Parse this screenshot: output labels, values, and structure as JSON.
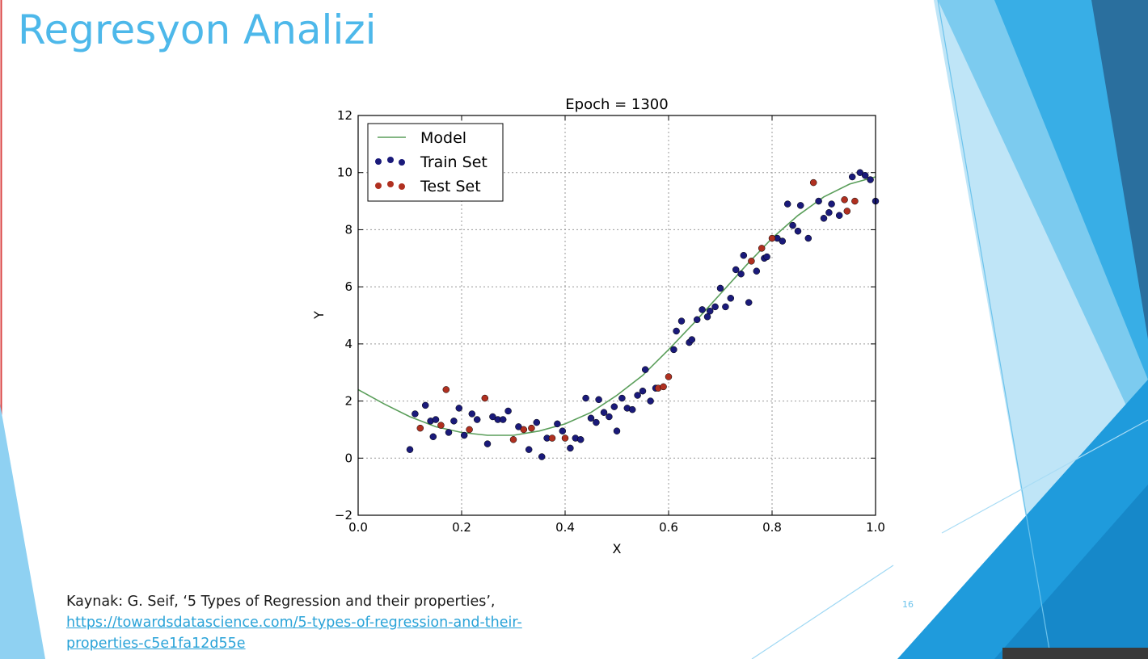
{
  "slide": {
    "title": "Regresyon Analizi",
    "page_number": "16",
    "citation_text": "Kaynak: G. Seif, ‘5 Types of Regression and their properties’,",
    "citation_link": "https://towardsdatascience.com/5-types-of-regression-and-their-properties-c5e1fa12d55e",
    "colors": {
      "title": "#4db8ea",
      "link": "#2aa3d8",
      "accent_dark": "#2a6f9e",
      "accent_mid": "#2ba6e1",
      "accent_light": "#8fd1f2"
    }
  },
  "chart_data": {
    "type": "scatter",
    "title": "Epoch = 1300",
    "xlabel": "X",
    "ylabel": "Y",
    "xlim": [
      0.0,
      1.0
    ],
    "ylim": [
      -2,
      12
    ],
    "xticks": [
      "0.0",
      "0.2",
      "0.4",
      "0.6",
      "0.8",
      "1.0"
    ],
    "yticks": [
      "−2",
      "0",
      "2",
      "4",
      "6",
      "8",
      "10",
      "12"
    ],
    "grid": true,
    "legend_position": "top-left",
    "series": [
      {
        "name": "Model",
        "kind": "line",
        "color": "#5a9e5a",
        "x": [
          0.0,
          0.05,
          0.1,
          0.15,
          0.2,
          0.25,
          0.3,
          0.35,
          0.4,
          0.45,
          0.5,
          0.55,
          0.6,
          0.65,
          0.7,
          0.75,
          0.8,
          0.85,
          0.9,
          0.95,
          1.0
        ],
        "y": [
          2.4,
          1.9,
          1.45,
          1.1,
          0.9,
          0.8,
          0.8,
          0.95,
          1.2,
          1.6,
          2.2,
          2.9,
          3.8,
          4.75,
          5.75,
          6.75,
          7.7,
          8.5,
          9.15,
          9.6,
          9.85
        ]
      },
      {
        "name": "Train Set",
        "kind": "scatter",
        "color": "#1a1a7a",
        "points": [
          [
            0.1,
            0.3
          ],
          [
            0.11,
            1.55
          ],
          [
            0.13,
            1.85
          ],
          [
            0.14,
            1.3
          ],
          [
            0.145,
            0.75
          ],
          [
            0.15,
            1.35
          ],
          [
            0.175,
            0.9
          ],
          [
            0.185,
            1.3
          ],
          [
            0.195,
            1.75
          ],
          [
            0.205,
            0.8
          ],
          [
            0.22,
            1.55
          ],
          [
            0.23,
            1.35
          ],
          [
            0.25,
            0.5
          ],
          [
            0.26,
            1.45
          ],
          [
            0.27,
            1.35
          ],
          [
            0.28,
            1.35
          ],
          [
            0.29,
            1.65
          ],
          [
            0.31,
            1.1
          ],
          [
            0.33,
            0.3
          ],
          [
            0.345,
            1.25
          ],
          [
            0.355,
            0.05
          ],
          [
            0.365,
            0.7
          ],
          [
            0.385,
            1.2
          ],
          [
            0.395,
            0.95
          ],
          [
            0.41,
            0.35
          ],
          [
            0.42,
            0.7
          ],
          [
            0.43,
            0.65
          ],
          [
            0.44,
            2.1
          ],
          [
            0.45,
            1.4
          ],
          [
            0.46,
            1.25
          ],
          [
            0.465,
            2.05
          ],
          [
            0.475,
            1.6
          ],
          [
            0.485,
            1.45
          ],
          [
            0.495,
            1.8
          ],
          [
            0.5,
            0.95
          ],
          [
            0.51,
            2.1
          ],
          [
            0.52,
            1.75
          ],
          [
            0.53,
            1.7
          ],
          [
            0.54,
            2.2
          ],
          [
            0.55,
            2.35
          ],
          [
            0.555,
            3.1
          ],
          [
            0.565,
            2.0
          ],
          [
            0.575,
            2.45
          ],
          [
            0.61,
            3.8
          ],
          [
            0.615,
            4.45
          ],
          [
            0.625,
            4.8
          ],
          [
            0.64,
            4.05
          ],
          [
            0.645,
            4.15
          ],
          [
            0.655,
            4.85
          ],
          [
            0.665,
            5.2
          ],
          [
            0.675,
            4.95
          ],
          [
            0.68,
            5.15
          ],
          [
            0.69,
            5.3
          ],
          [
            0.7,
            5.95
          ],
          [
            0.71,
            5.3
          ],
          [
            0.72,
            5.6
          ],
          [
            0.73,
            6.6
          ],
          [
            0.74,
            6.45
          ],
          [
            0.745,
            7.1
          ],
          [
            0.755,
            5.45
          ],
          [
            0.77,
            6.55
          ],
          [
            0.785,
            7.0
          ],
          [
            0.79,
            7.05
          ],
          [
            0.81,
            7.7
          ],
          [
            0.82,
            7.6
          ],
          [
            0.83,
            8.9
          ],
          [
            0.84,
            8.15
          ],
          [
            0.85,
            7.95
          ],
          [
            0.855,
            8.85
          ],
          [
            0.87,
            7.7
          ],
          [
            0.89,
            9.0
          ],
          [
            0.9,
            8.4
          ],
          [
            0.91,
            8.6
          ],
          [
            0.915,
            8.9
          ],
          [
            0.93,
            8.5
          ],
          [
            0.955,
            9.85
          ],
          [
            0.97,
            10.0
          ],
          [
            0.98,
            9.9
          ],
          [
            0.99,
            9.75
          ],
          [
            1.0,
            9.0
          ]
        ]
      },
      {
        "name": "Test Set",
        "kind": "scatter",
        "color": "#b03020",
        "points": [
          [
            0.12,
            1.05
          ],
          [
            0.16,
            1.15
          ],
          [
            0.17,
            2.4
          ],
          [
            0.215,
            1.0
          ],
          [
            0.245,
            2.1
          ],
          [
            0.3,
            0.65
          ],
          [
            0.32,
            1.0
          ],
          [
            0.335,
            1.05
          ],
          [
            0.375,
            0.7
          ],
          [
            0.4,
            0.7
          ],
          [
            0.58,
            2.45
          ],
          [
            0.59,
            2.5
          ],
          [
            0.6,
            2.85
          ],
          [
            0.76,
            6.9
          ],
          [
            0.78,
            7.35
          ],
          [
            0.8,
            7.7
          ],
          [
            0.88,
            9.65
          ],
          [
            0.94,
            9.05
          ],
          [
            0.945,
            8.65
          ],
          [
            0.96,
            9.0
          ]
        ]
      }
    ]
  }
}
